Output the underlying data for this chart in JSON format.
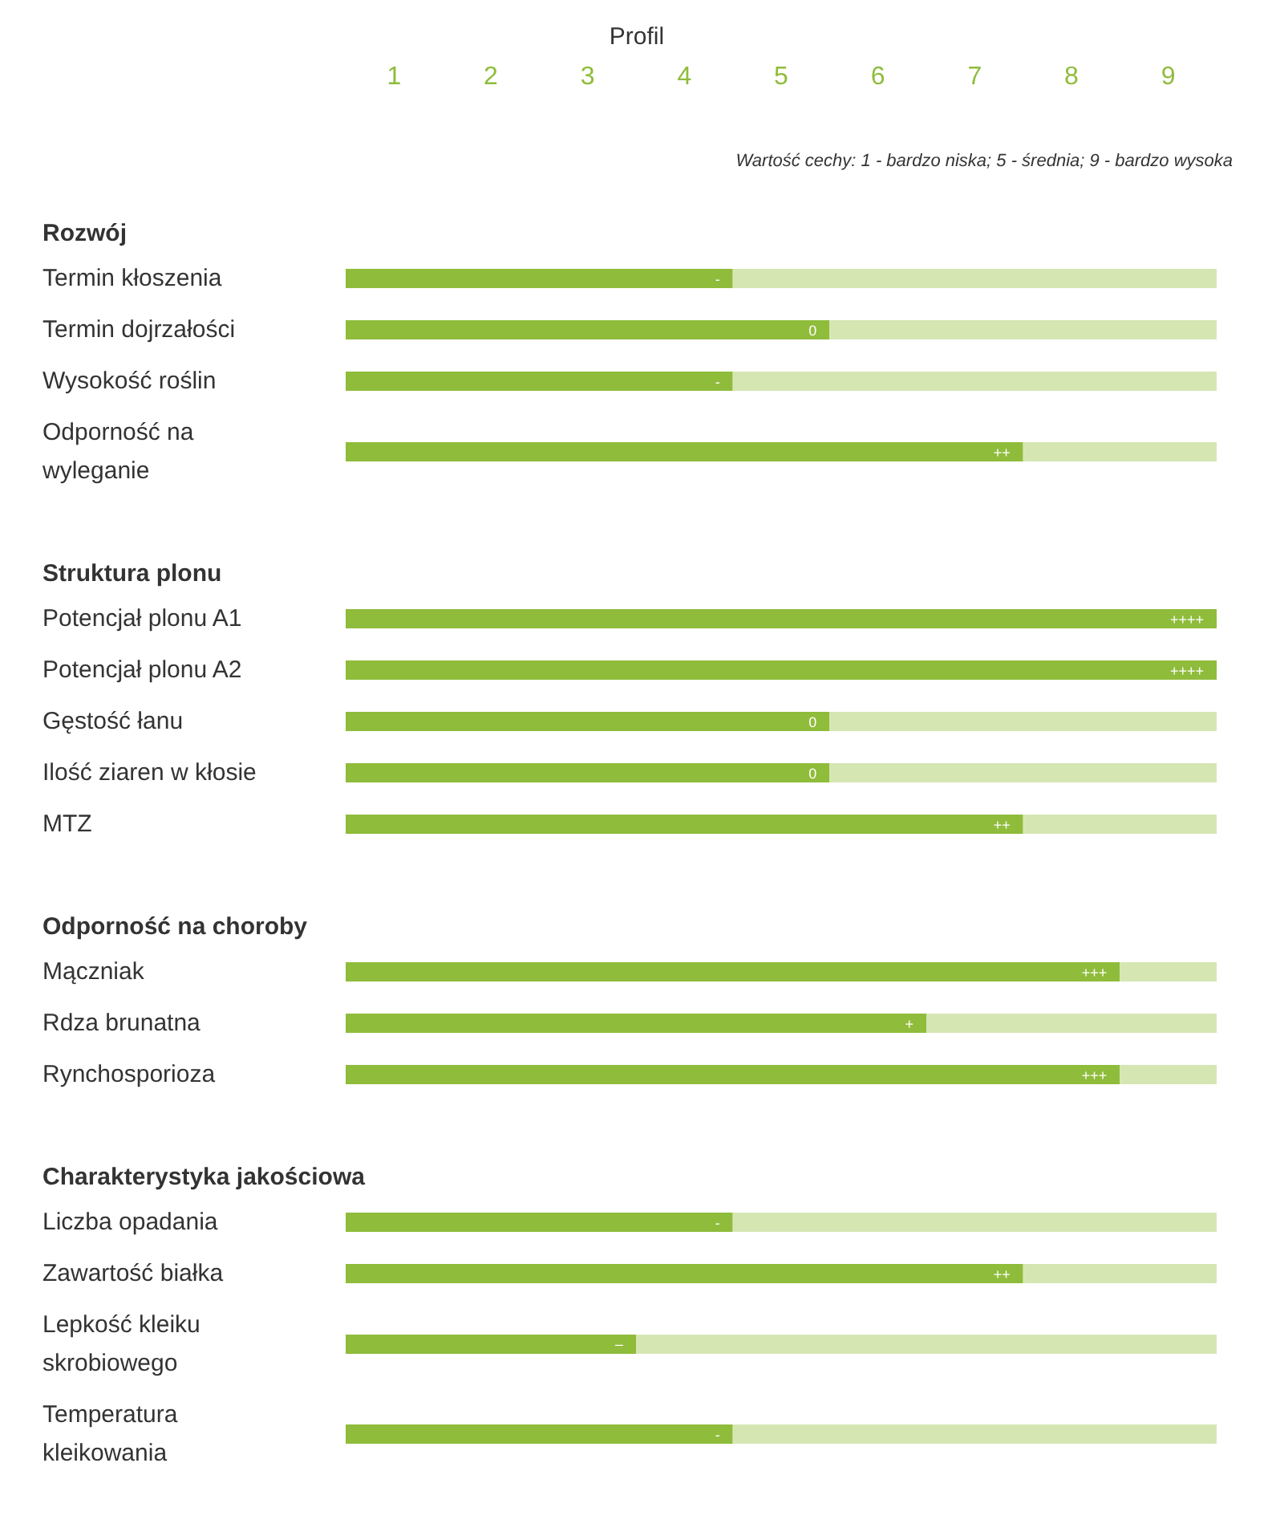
{
  "chart_data": {
    "type": "bar",
    "orientation": "horizontal",
    "stacked": true,
    "xlabel": "Profil",
    "categories": [
      null,
      "Termin kłoszenia",
      "Termin dojrzałości",
      "Wysokość roślin",
      "Odporność na wyleganie",
      null,
      "Potencjał plonu A1",
      "Potencjał plonu A2",
      "Gęstość łanu",
      "Ilość ziaren w kłosie",
      "MTZ",
      null,
      "Mączniak",
      "Rdza brunatna",
      "Rynchosporioza",
      null,
      "Liczba opadania",
      "Zawartość białka",
      "Lepkość kleiku skrobiowego",
      "Temperatura kleikowania"
    ],
    "series": [
      {
        "color": "#8fbc3b",
        "values": [
          null,
          4,
          5,
          4,
          7,
          null,
          9,
          9,
          5,
          5,
          7,
          null,
          8,
          6,
          8,
          null,
          4,
          7,
          3,
          4
        ]
      },
      {
        "color": "#d6e6b3",
        "values": [
          null,
          5,
          4,
          5,
          2,
          null,
          0,
          0,
          4,
          4,
          2,
          null,
          1,
          3,
          1,
          null,
          5,
          2,
          6,
          5
        ]
      }
    ],
    "xlim": [
      0,
      9
    ],
    "xticks": [
      {
        "value": 0.5,
        "label": "1"
      },
      {
        "value": 1.5,
        "label": "2"
      },
      {
        "value": 2.5,
        "label": "3"
      },
      {
        "value": 3.5,
        "label": "4"
      },
      {
        "value": 4.5,
        "label": "5"
      },
      {
        "value": 5.5,
        "label": "6"
      },
      {
        "value": 6.5,
        "label": "7"
      },
      {
        "value": 7.5,
        "label": "8"
      },
      {
        "value": 8.5,
        "label": "9"
      }
    ],
    "annotations": [
      "Wartość cechy: 1 - bardzo niska; 5 - średnia; 9 - bardzo wysoka",
      "Rozwój",
      "Struktura plonu",
      "Odporność na choroby",
      "Charakterystyka jakościowa",
      {
        "text": "-",
        "x": 4,
        "y": "Termin kłoszenia"
      },
      {
        "text": "0",
        "x": 5,
        "y": "Termin dojrzałości"
      },
      {
        "text": "-",
        "x": 4,
        "y": "Wysokość roślin"
      },
      {
        "text": "++",
        "x": 7,
        "y": "Odporność na wyleganie"
      },
      {
        "text": "++++",
        "x": 9,
        "y": "Potencjał plonu A1"
      },
      {
        "text": "++++",
        "x": 9,
        "y": "Potencjał plonu A2"
      },
      {
        "text": "0",
        "x": 5,
        "y": "Gęstość łanu"
      },
      {
        "text": "0",
        "x": 5,
        "y": "Ilość ziaren w kłosie"
      },
      {
        "text": "++",
        "x": 7,
        "y": "MTZ"
      },
      {
        "text": "+++",
        "x": 8,
        "y": "Mączniak"
      },
      {
        "text": "+",
        "x": 6,
        "y": "Rdza brunatna"
      },
      {
        "text": "+++",
        "x": 8,
        "y": "Rynchosporioza"
      },
      {
        "text": "-",
        "x": 4,
        "y": "Liczba opadania"
      },
      {
        "text": "++",
        "x": 7,
        "y": "Zawartość białka"
      },
      {
        "text": "–",
        "x": 3,
        "y": "Lepkość kleiku skrobiowego"
      },
      {
        "text": "-",
        "x": 4,
        "y": "Temperatura kleikowania"
      }
    ]
  }
}
